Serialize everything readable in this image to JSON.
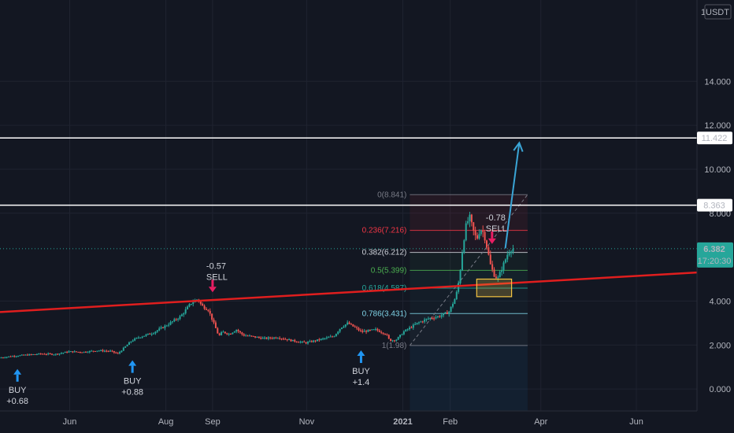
{
  "chart_data": {
    "type": "candlestick",
    "title": "",
    "axis_currency": "USDT",
    "y_axis_top_label": "1",
    "ylim": [
      -1.0,
      17.7
    ],
    "y_ticks": [
      {
        "value": 14.0,
        "label": "14.000"
      },
      {
        "value": 12.0,
        "label": "12.000"
      },
      {
        "value": 10.0,
        "label": "10.000"
      },
      {
        "value": 8.0,
        "label": "8.000"
      },
      {
        "value": 4.0,
        "label": "4.000"
      },
      {
        "value": 2.0,
        "label": "2.000"
      },
      {
        "value": 0.0,
        "label": "0.000"
      }
    ],
    "x_ticks": [
      {
        "label": "Jun",
        "t": 0.1
      },
      {
        "label": "Aug",
        "t": 0.238
      },
      {
        "label": "Sep",
        "t": 0.305
      },
      {
        "label": "Nov",
        "t": 0.44
      },
      {
        "label": "2021",
        "t": 0.578
      },
      {
        "label": "Feb",
        "t": 0.646
      },
      {
        "label": "Apr",
        "t": 0.776
      },
      {
        "label": "Jun",
        "t": 0.913
      }
    ],
    "price_series": [
      [
        0.0,
        1.42
      ],
      [
        0.02,
        1.5
      ],
      [
        0.04,
        1.55
      ],
      [
        0.06,
        1.6
      ],
      [
        0.08,
        1.58
      ],
      [
        0.1,
        1.7
      ],
      [
        0.12,
        1.68
      ],
      [
        0.14,
        1.75
      ],
      [
        0.16,
        1.72
      ],
      [
        0.17,
        1.6
      ],
      [
        0.18,
        1.9
      ],
      [
        0.19,
        2.2
      ],
      [
        0.2,
        2.35
      ],
      [
        0.22,
        2.55
      ],
      [
        0.24,
        2.9
      ],
      [
        0.26,
        3.3
      ],
      [
        0.275,
        3.9
      ],
      [
        0.285,
        4.1
      ],
      [
        0.29,
        3.8
      ],
      [
        0.3,
        3.6
      ],
      [
        0.305,
        3.2
      ],
      [
        0.31,
        2.8
      ],
      [
        0.315,
        2.4
      ],
      [
        0.32,
        2.6
      ],
      [
        0.33,
        2.5
      ],
      [
        0.34,
        2.7
      ],
      [
        0.35,
        2.45
      ],
      [
        0.36,
        2.4
      ],
      [
        0.38,
        2.3
      ],
      [
        0.4,
        2.35
      ],
      [
        0.42,
        2.2
      ],
      [
        0.44,
        2.1
      ],
      [
        0.46,
        2.25
      ],
      [
        0.48,
        2.4
      ],
      [
        0.49,
        2.8
      ],
      [
        0.5,
        3.0
      ],
      [
        0.51,
        2.8
      ],
      [
        0.52,
        2.6
      ],
      [
        0.54,
        2.7
      ],
      [
        0.555,
        2.5
      ],
      [
        0.56,
        2.2
      ],
      [
        0.57,
        2.25
      ],
      [
        0.58,
        2.6
      ],
      [
        0.59,
        2.8
      ],
      [
        0.6,
        3.0
      ],
      [
        0.615,
        3.2
      ],
      [
        0.63,
        3.3
      ],
      [
        0.645,
        3.5
      ],
      [
        0.655,
        4.2
      ],
      [
        0.66,
        5.0
      ],
      [
        0.665,
        6.5
      ],
      [
        0.67,
        7.5
      ],
      [
        0.675,
        7.8
      ],
      [
        0.68,
        7.2
      ],
      [
        0.685,
        6.8
      ],
      [
        0.69,
        7.3
      ],
      [
        0.695,
        7.1
      ],
      [
        0.7,
        6.4
      ],
      [
        0.705,
        5.6
      ],
      [
        0.71,
        5.2
      ],
      [
        0.715,
        5.0
      ],
      [
        0.72,
        5.4
      ],
      [
        0.725,
        5.8
      ],
      [
        0.73,
        6.2
      ],
      [
        0.735,
        6.38
      ]
    ],
    "horizontal_levels": [
      {
        "value": 11.422,
        "label": "11.422"
      },
      {
        "value": 8.363,
        "label": "8.363"
      }
    ],
    "current_price": {
      "value": 6.382,
      "label": "6.382",
      "countdown": "17:20:30"
    },
    "trend_line": {
      "start": [
        0.0,
        3.5
      ],
      "end": [
        1.0,
        5.3
      ]
    },
    "fib_levels": [
      {
        "label": "0(8.841)",
        "value": 8.841,
        "color": "#787b86"
      },
      {
        "label": "0.236(7.216)",
        "value": 7.216,
        "color": "#f23645"
      },
      {
        "label": "0.382(6.212)",
        "value": 6.212,
        "color": "#d1d4dc"
      },
      {
        "label": "0.5(5.399)",
        "value": 5.399,
        "color": "#4caf50"
      },
      {
        "label": "0.618(4.587)",
        "value": 4.587,
        "color": "#26a69a"
      },
      {
        "label": "0.786(3.431)",
        "value": 3.431,
        "color": "#7fd3e6"
      },
      {
        "label": "1(1.98)",
        "value": 1.98,
        "color": "#787b86"
      }
    ],
    "fib_time_range": [
      0.588,
      0.757
    ],
    "fib_trend": {
      "from": [
        0.588,
        1.98
      ],
      "to": [
        0.757,
        8.841
      ]
    },
    "highlight_box": {
      "t0": 0.684,
      "t1": 0.734,
      "v0": 4.2,
      "v1": 5.0
    },
    "forecast_arrow": {
      "from": [
        0.725,
        6.4
      ],
      "to": [
        0.745,
        11.2
      ]
    },
    "signals": [
      {
        "type": "buy",
        "t": 0.025,
        "lines": [
          "BUY",
          "+0.68"
        ],
        "arrow_value": 1.05
      },
      {
        "type": "buy",
        "t": 0.19,
        "lines": [
          "BUY",
          "+0.88"
        ],
        "arrow_value": 1.45
      },
      {
        "type": "sell",
        "t": 0.305,
        "lines": [
          "-0.57",
          "SELL"
        ],
        "arrow_value": 4.4
      },
      {
        "type": "buy",
        "t": 0.518,
        "lines": [
          "BUY",
          "+1.4"
        ],
        "arrow_value": 1.9
      },
      {
        "type": "sell",
        "t": 0.706,
        "lines": [
          "-0.78",
          "SELL"
        ],
        "arrow_value": 6.6
      }
    ],
    "colors": {
      "up": "#26a69a",
      "down": "#ef5350",
      "trend": "#e01e1e",
      "arrow": "#3aa5d6",
      "level": "#ffffff",
      "buy": "#2196f3",
      "sell": "#e91e63",
      "box": "#f5c542"
    }
  }
}
